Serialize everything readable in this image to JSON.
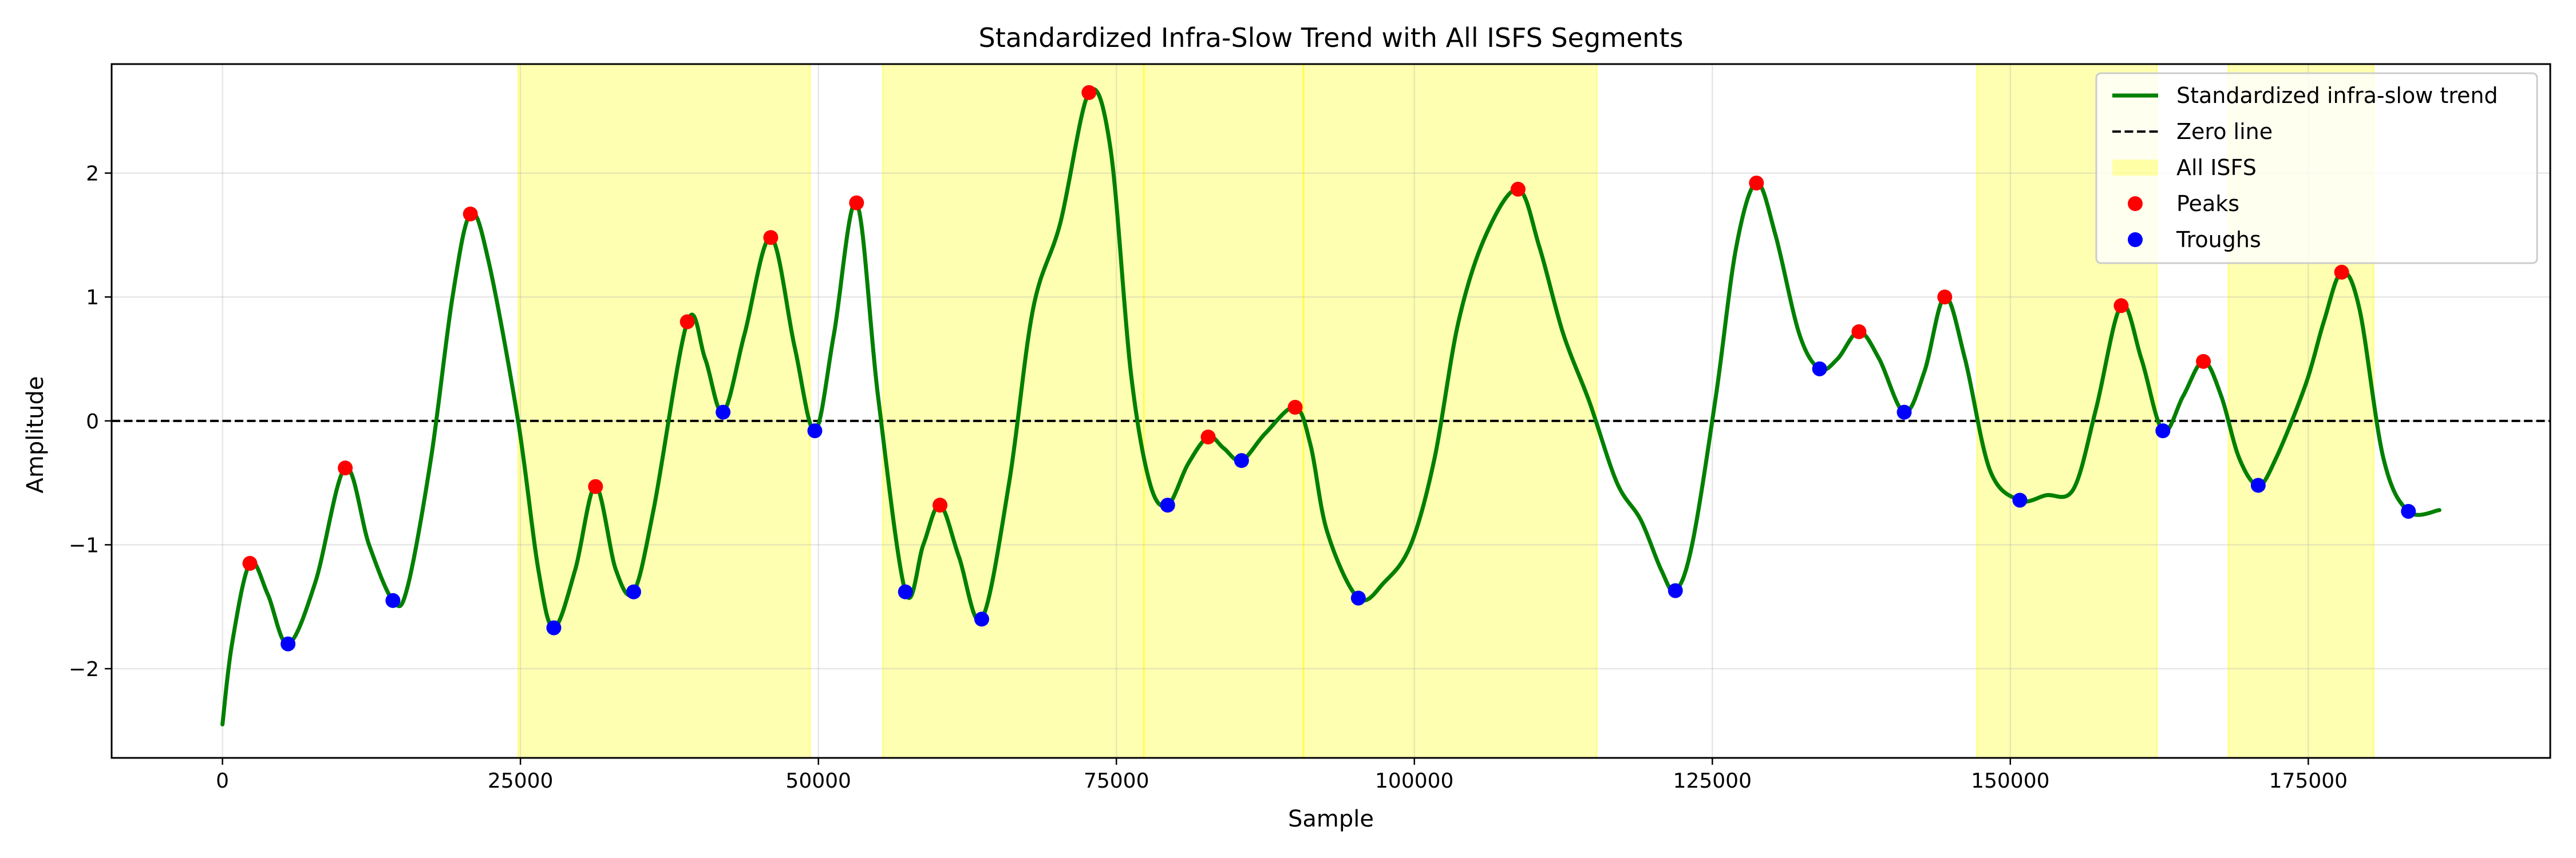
{
  "chart_data": {
    "type": "line",
    "title": "Standardized Infra-Slow Trend with All ISFS Segments",
    "xlabel": "Sample",
    "ylabel": "Amplitude",
    "xlim": [
      -9300,
      195300
    ],
    "ylim": [
      -2.72,
      2.88
    ],
    "xticks": [
      0,
      25000,
      50000,
      75000,
      100000,
      125000,
      150000,
      175000
    ],
    "xtick_labels": [
      "0",
      "25000",
      "50000",
      "75000",
      "100000",
      "125000",
      "150000",
      "175000"
    ],
    "yticks": [
      -2,
      -1,
      0,
      1,
      2
    ],
    "ytick_labels": [
      "−2",
      "−1",
      "0",
      "1",
      "2"
    ],
    "grid": true,
    "legend_position": "top-right",
    "legend": [
      {
        "label": "Standardized infra-slow trend",
        "kind": "line",
        "color": "#008000"
      },
      {
        "label": "Zero line",
        "kind": "dashed",
        "color": "#000000"
      },
      {
        "label": "All ISFS",
        "kind": "patch",
        "color": "#ffff00"
      },
      {
        "label": "Peaks",
        "kind": "marker",
        "color": "#ff0000"
      },
      {
        "label": "Troughs",
        "kind": "marker",
        "color": "#0000ff"
      }
    ],
    "isfs_segments": [
      [
        24800,
        49300
      ],
      [
        55400,
        77300
      ],
      [
        77300,
        90700
      ],
      [
        90700,
        115300
      ],
      [
        147200,
        162300
      ],
      [
        168300,
        180500
      ]
    ],
    "trend": [
      [
        0,
        -2.45
      ],
      [
        800,
        -1.8
      ],
      [
        2300,
        -1.15
      ],
      [
        3800,
        -1.4
      ],
      [
        5500,
        -1.8
      ],
      [
        7800,
        -1.3
      ],
      [
        10300,
        -0.38
      ],
      [
        12300,
        -1.0
      ],
      [
        14300,
        -1.45
      ],
      [
        15500,
        -1.35
      ],
      [
        17500,
        -0.3
      ],
      [
        19300,
        1.0
      ],
      [
        20800,
        1.67
      ],
      [
        22300,
        1.3
      ],
      [
        24800,
        0.0
      ],
      [
        26500,
        -1.2
      ],
      [
        27800,
        -1.67
      ],
      [
        29600,
        -1.2
      ],
      [
        31300,
        -0.53
      ],
      [
        33000,
        -1.2
      ],
      [
        34500,
        -1.38
      ],
      [
        36200,
        -0.7
      ],
      [
        39000,
        0.8
      ],
      [
        40500,
        0.5
      ],
      [
        42000,
        0.07
      ],
      [
        43800,
        0.7
      ],
      [
        46000,
        1.48
      ],
      [
        48000,
        0.6
      ],
      [
        49700,
        -0.08
      ],
      [
        51300,
        0.7
      ],
      [
        53200,
        1.76
      ],
      [
        55000,
        0.2
      ],
      [
        57300,
        -1.38
      ],
      [
        58800,
        -1.0
      ],
      [
        60200,
        -0.68
      ],
      [
        61800,
        -1.1
      ],
      [
        63700,
        -1.6
      ],
      [
        66000,
        -0.5
      ],
      [
        68000,
        0.9
      ],
      [
        70300,
        1.6
      ],
      [
        72700,
        2.65
      ],
      [
        74500,
        2.2
      ],
      [
        76200,
        0.4
      ],
      [
        77800,
        -0.5
      ],
      [
        79300,
        -0.68
      ],
      [
        81000,
        -0.35
      ],
      [
        82700,
        -0.13
      ],
      [
        84000,
        -0.22
      ],
      [
        85500,
        -0.32
      ],
      [
        87500,
        -0.1
      ],
      [
        90000,
        0.11
      ],
      [
        91300,
        -0.2
      ],
      [
        92700,
        -0.9
      ],
      [
        95300,
        -1.43
      ],
      [
        97500,
        -1.3
      ],
      [
        99700,
        -1.0
      ],
      [
        101700,
        -0.3
      ],
      [
        103700,
        0.8
      ],
      [
        106000,
        1.5
      ],
      [
        108700,
        1.87
      ],
      [
        110500,
        1.4
      ],
      [
        112500,
        0.7
      ],
      [
        114700,
        0.15
      ],
      [
        117000,
        -0.5
      ],
      [
        119000,
        -0.8
      ],
      [
        120700,
        -1.2
      ],
      [
        121900,
        -1.37
      ],
      [
        123300,
        -1.0
      ],
      [
        125300,
        0.2
      ],
      [
        127000,
        1.4
      ],
      [
        128700,
        1.92
      ],
      [
        130300,
        1.5
      ],
      [
        132300,
        0.7
      ],
      [
        134000,
        0.42
      ],
      [
        135500,
        0.5
      ],
      [
        137300,
        0.72
      ],
      [
        139000,
        0.5
      ],
      [
        141100,
        0.07
      ],
      [
        142800,
        0.4
      ],
      [
        144500,
        1.0
      ],
      [
        146200,
        0.5
      ],
      [
        148300,
        -0.4
      ],
      [
        150800,
        -0.64
      ],
      [
        153000,
        -0.6
      ],
      [
        155300,
        -0.55
      ],
      [
        157200,
        0.1
      ],
      [
        159300,
        0.93
      ],
      [
        161000,
        0.5
      ],
      [
        162800,
        -0.08
      ],
      [
        164500,
        0.2
      ],
      [
        166200,
        0.48
      ],
      [
        167700,
        0.2
      ],
      [
        169200,
        -0.3
      ],
      [
        170800,
        -0.52
      ],
      [
        172300,
        -0.3
      ],
      [
        174800,
        0.3
      ],
      [
        176300,
        0.8
      ],
      [
        177800,
        1.2
      ],
      [
        179300,
        0.9
      ],
      [
        181300,
        -0.3
      ],
      [
        183400,
        -0.73
      ],
      [
        186000,
        -0.72
      ]
    ],
    "peaks": [
      [
        2300,
        -1.15
      ],
      [
        10300,
        -0.38
      ],
      [
        20800,
        1.67
      ],
      [
        31300,
        -0.53
      ],
      [
        39000,
        0.8
      ],
      [
        46000,
        1.48
      ],
      [
        53200,
        1.76
      ],
      [
        60200,
        -0.68
      ],
      [
        72700,
        2.65
      ],
      [
        82700,
        -0.13
      ],
      [
        90000,
        0.11
      ],
      [
        108700,
        1.87
      ],
      [
        128700,
        1.92
      ],
      [
        137300,
        0.72
      ],
      [
        144500,
        1.0
      ],
      [
        159300,
        0.93
      ],
      [
        166200,
        0.48
      ],
      [
        177800,
        1.2
      ]
    ],
    "troughs": [
      [
        5500,
        -1.8
      ],
      [
        14300,
        -1.45
      ],
      [
        27800,
        -1.67
      ],
      [
        34500,
        -1.38
      ],
      [
        42000,
        0.07
      ],
      [
        49700,
        -0.08
      ],
      [
        57300,
        -1.38
      ],
      [
        63700,
        -1.6
      ],
      [
        79300,
        -0.68
      ],
      [
        85500,
        -0.32
      ],
      [
        95300,
        -1.43
      ],
      [
        121900,
        -1.37
      ],
      [
        134000,
        0.42
      ],
      [
        141100,
        0.07
      ],
      [
        150800,
        -0.64
      ],
      [
        162800,
        -0.08
      ],
      [
        170800,
        -0.52
      ],
      [
        183400,
        -0.73
      ]
    ]
  }
}
